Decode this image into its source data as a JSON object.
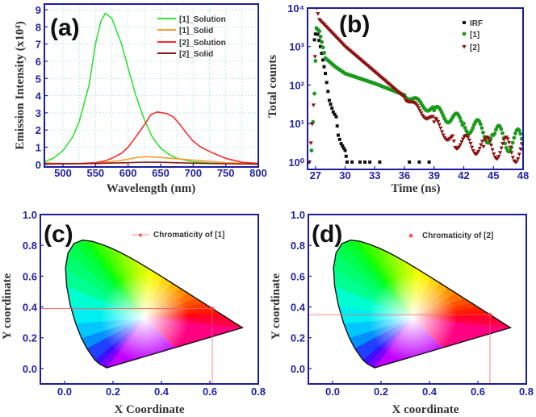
{
  "chart_data": [
    {
      "type": "line",
      "panel_label": "(a)",
      "xlabel": "Wavelength (nm)",
      "ylabel": "Emission Intensity (x10⁴)",
      "xlim": [
        471.5,
        800
      ],
      "ylim": [
        -0.15,
        9.33
      ],
      "xticks": [
        500,
        550,
        600,
        650,
        700,
        750,
        800
      ],
      "yticks": [
        0,
        1,
        2,
        3,
        4,
        5,
        6,
        7,
        8,
        9
      ],
      "grid": true,
      "legend_position": "top-right",
      "series": [
        {
          "name": "[1]_Solution",
          "color": "#33e033",
          "points": [
            [
              471.5,
              0.15
            ],
            [
              485,
              0.35
            ],
            [
              500,
              0.8
            ],
            [
              515,
              1.6
            ],
            [
              525,
              2.5
            ],
            [
              540,
              4.6
            ],
            [
              550,
              7.0
            ],
            [
              558,
              8.3
            ],
            [
              565,
              8.8
            ],
            [
              575,
              8.5
            ],
            [
              590,
              7.0
            ],
            [
              600,
              5.6
            ],
            [
              612,
              4.0
            ],
            [
              625,
              2.6
            ],
            [
              637,
              1.6
            ],
            [
              650,
              0.95
            ],
            [
              662,
              0.6
            ],
            [
              675,
              0.35
            ],
            [
              700,
              0.15
            ],
            [
              725,
              0.08
            ],
            [
              750,
              0.05
            ],
            [
              800,
              0.02
            ]
          ]
        },
        {
          "name": "[1]_Solid",
          "color": "#ff9a2a",
          "points": [
            [
              471.5,
              0.1
            ],
            [
              490,
              0.04
            ],
            [
              520,
              0.03
            ],
            [
              550,
              0.08
            ],
            [
              575,
              0.15
            ],
            [
              600,
              0.3
            ],
            [
              615,
              0.42
            ],
            [
              630,
              0.45
            ],
            [
              650,
              0.4
            ],
            [
              675,
              0.33
            ],
            [
              700,
              0.25
            ],
            [
              725,
              0.18
            ],
            [
              750,
              0.1
            ],
            [
              775,
              0.07
            ],
            [
              800,
              0.05
            ]
          ]
        },
        {
          "name": "[2]_Solution",
          "color": "#ff2a2a",
          "points": [
            [
              471.5,
              0.05
            ],
            [
              525,
              0.05
            ],
            [
              550,
              0.1
            ],
            [
              565,
              0.2
            ],
            [
              575,
              0.35
            ],
            [
              590,
              0.65
            ],
            [
              600,
              1.0
            ],
            [
              612,
              1.6
            ],
            [
              625,
              2.3
            ],
            [
              635,
              2.9
            ],
            [
              645,
              3.05
            ],
            [
              660,
              2.95
            ],
            [
              670,
              2.75
            ],
            [
              680,
              2.3
            ],
            [
              690,
              1.8
            ],
            [
              700,
              1.35
            ],
            [
              712,
              1.0
            ],
            [
              725,
              0.75
            ],
            [
              740,
              0.5
            ],
            [
              750,
              0.35
            ],
            [
              775,
              0.12
            ],
            [
              800,
              0.06
            ]
          ]
        },
        {
          "name": "[2]_Solid",
          "color": "#8b1a1a",
          "points": [
            [
              471.5,
              0.02
            ],
            [
              550,
              0.05
            ],
            [
              600,
              0.1
            ],
            [
              625,
              0.13
            ],
            [
              650,
              0.12
            ],
            [
              700,
              0.07
            ],
            [
              750,
              0.04
            ],
            [
              800,
              0.02
            ]
          ]
        }
      ]
    },
    {
      "type": "scatter",
      "panel_label": "(b)",
      "xlabel": "Time (ns)",
      "ylabel": "Total counts",
      "xlim": [
        26.2,
        48
      ],
      "ylim_log10": [
        -0.19,
        4
      ],
      "yscale": "log",
      "xticks": [
        27,
        30,
        33,
        36,
        39,
        42,
        45,
        48
      ],
      "yticks": [
        1,
        10,
        100,
        1000,
        10000
      ],
      "ytick_labels": [
        "10⁰",
        "10¹",
        "10²",
        "10³",
        "10⁴"
      ],
      "legend_position": "top-right",
      "series": [
        {
          "name": "IRF",
          "color": "#111111",
          "marker": "square",
          "points": [
            [
              26.3,
              1
            ],
            [
              26.9,
              1500
            ],
            [
              27.1,
              3000
            ],
            [
              27.5,
              1000
            ],
            [
              28,
              200
            ],
            [
              28.4,
              40
            ],
            [
              28.8,
              20
            ],
            [
              29.1,
              15
            ],
            [
              29.3,
              5
            ],
            [
              29.6,
              3
            ],
            [
              30,
              2
            ],
            [
              30.2,
              1
            ],
            [
              30.7,
              1
            ],
            [
              31.5,
              1
            ],
            [
              32,
              1
            ],
            [
              32.5,
              1
            ],
            [
              33.5,
              1
            ],
            [
              36.5,
              1
            ],
            [
              37.5,
              1
            ],
            [
              38.5,
              1
            ]
          ]
        },
        {
          "name": "[1]",
          "color": "#1a9a1a",
          "marker": "circle",
          "points": [
            [
              26.6,
              2
            ],
            [
              26.9,
              60
            ],
            [
              27.1,
              3000
            ],
            [
              27.4,
              2500
            ],
            [
              28,
              500
            ],
            [
              29,
              300
            ],
            [
              30,
              200
            ],
            [
              33,
              110
            ],
            [
              36,
              55
            ],
            [
              39,
              22
            ],
            [
              42,
              10
            ],
            [
              45,
              5
            ],
            [
              48,
              3
            ]
          ]
        },
        {
          "name": "[2]",
          "color": "#8b1010",
          "marker": "triangle-down",
          "points": [
            [
              26.4,
              1
            ],
            [
              26.8,
              30
            ],
            [
              27.1,
              10000
            ],
            [
              27.4,
              5000
            ],
            [
              30,
              1000
            ],
            [
              33,
              220
            ],
            [
              36,
              48
            ],
            [
              39,
              11
            ],
            [
              41,
              3.5
            ],
            [
              44,
              2.5
            ],
            [
              48,
              2
            ]
          ]
        }
      ]
    },
    {
      "type": "scatter",
      "panel_label": "(c)",
      "xlabel": "X Coordinate",
      "ylabel": "Y coordinate",
      "xlim": [
        -0.1,
        0.8
      ],
      "ylim": [
        -0.1,
        1.0
      ],
      "xticks": [
        0.0,
        0.2,
        0.4,
        0.6,
        0.8
      ],
      "yticks": [
        0.0,
        0.2,
        0.4,
        0.6,
        0.8,
        1.0
      ],
      "legend": "Chromaticity of [1]",
      "legend_position": "top-right",
      "point": {
        "x": 0.61,
        "y": 0.39,
        "color": "#ff3030"
      }
    },
    {
      "type": "scatter",
      "panel_label": "(d)",
      "xlabel": "X coordinate",
      "ylabel": "Y coordinate",
      "xlim": [
        -0.1,
        0.8
      ],
      "ylim": [
        -0.1,
        1.0
      ],
      "xticks": [
        0.0,
        0.2,
        0.4,
        0.6,
        0.8
      ],
      "yticks": [
        0.0,
        0.2,
        0.4,
        0.6,
        0.8,
        1.0
      ],
      "legend": "Chromaticity of [2]",
      "legend_position": "top-right",
      "point": {
        "x": 0.65,
        "y": 0.35,
        "color": "#ff3030"
      }
    }
  ],
  "colors": {
    "axis": "#1c1ca0",
    "tick_text": "#2323a8"
  }
}
